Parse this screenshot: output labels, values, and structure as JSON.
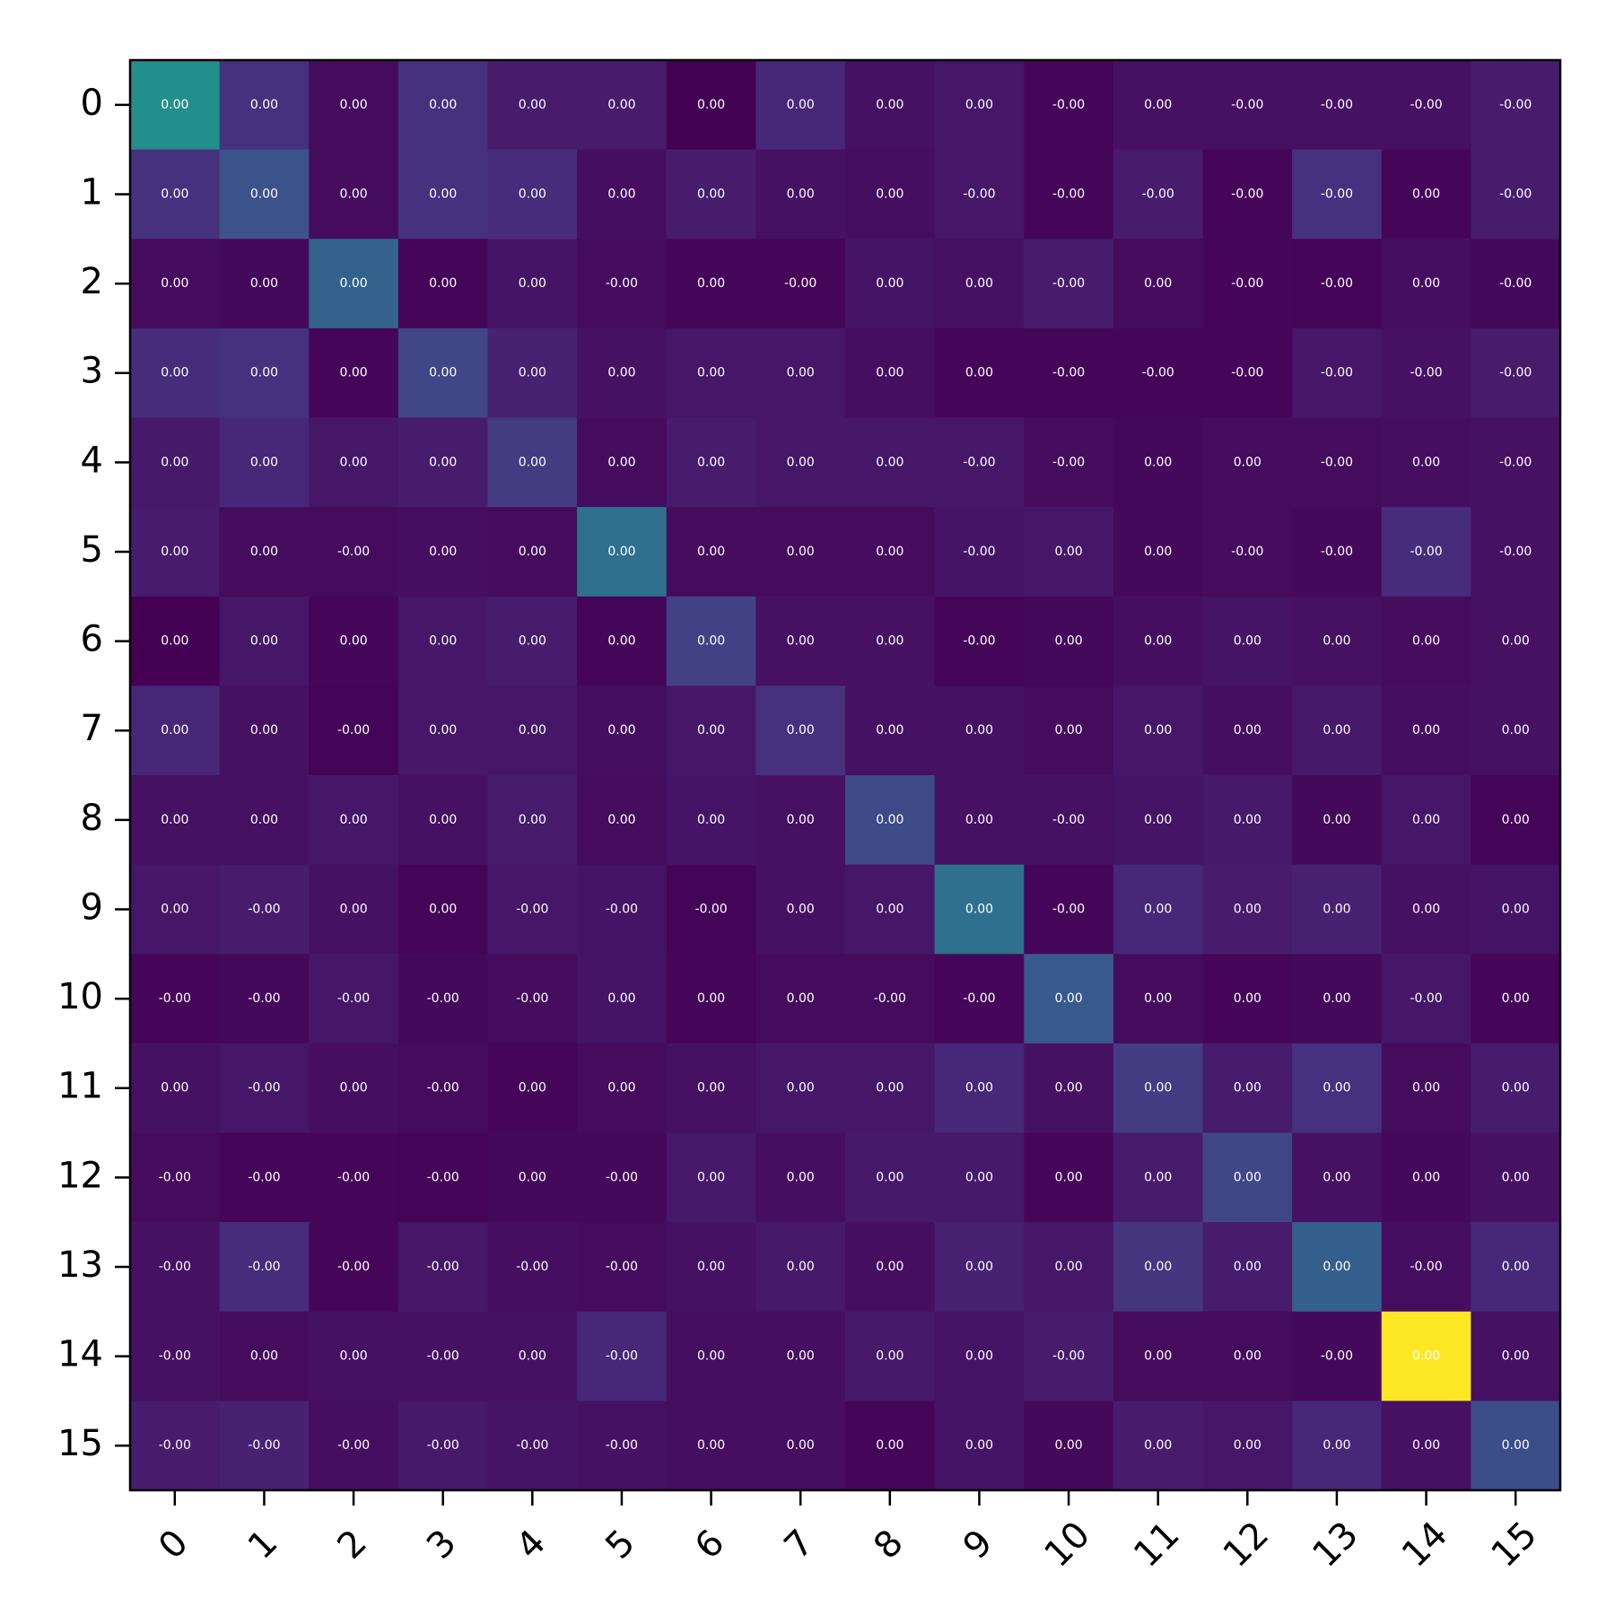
{
  "chart_data": {
    "type": "heatmap",
    "title": "",
    "xlabel": "",
    "ylabel": "",
    "colormap": "viridis",
    "legend": "none",
    "grid": false,
    "x_ticks": [
      "0",
      "1",
      "2",
      "3",
      "4",
      "5",
      "6",
      "7",
      "8",
      "9",
      "10",
      "11",
      "12",
      "13",
      "14",
      "15"
    ],
    "y_ticks": [
      "0",
      "1",
      "2",
      "3",
      "4",
      "5",
      "6",
      "7",
      "8",
      "9",
      "10",
      "11",
      "12",
      "13",
      "14",
      "15"
    ],
    "x_tick_rotation_deg": 45,
    "labels": [
      [
        "0.00",
        "0.00",
        "0.00",
        "0.00",
        "0.00",
        "0.00",
        "0.00",
        "0.00",
        "0.00",
        "0.00",
        "-0.00",
        "0.00",
        "-0.00",
        "-0.00",
        "-0.00",
        "-0.00"
      ],
      [
        "0.00",
        "0.00",
        "0.00",
        "0.00",
        "0.00",
        "0.00",
        "0.00",
        "0.00",
        "0.00",
        "-0.00",
        "-0.00",
        "-0.00",
        "-0.00",
        "-0.00",
        "0.00",
        "-0.00"
      ],
      [
        "0.00",
        "0.00",
        "0.00",
        "0.00",
        "0.00",
        "-0.00",
        "0.00",
        "-0.00",
        "0.00",
        "0.00",
        "-0.00",
        "0.00",
        "-0.00",
        "-0.00",
        "0.00",
        "-0.00"
      ],
      [
        "0.00",
        "0.00",
        "0.00",
        "0.00",
        "0.00",
        "0.00",
        "0.00",
        "0.00",
        "0.00",
        "0.00",
        "-0.00",
        "-0.00",
        "-0.00",
        "-0.00",
        "-0.00",
        "-0.00"
      ],
      [
        "0.00",
        "0.00",
        "0.00",
        "0.00",
        "0.00",
        "0.00",
        "0.00",
        "0.00",
        "0.00",
        "-0.00",
        "-0.00",
        "0.00",
        "0.00",
        "-0.00",
        "0.00",
        "-0.00"
      ],
      [
        "0.00",
        "0.00",
        "-0.00",
        "0.00",
        "0.00",
        "0.00",
        "0.00",
        "0.00",
        "0.00",
        "-0.00",
        "0.00",
        "0.00",
        "-0.00",
        "-0.00",
        "-0.00",
        "-0.00"
      ],
      [
        "0.00",
        "0.00",
        "0.00",
        "0.00",
        "0.00",
        "0.00",
        "0.00",
        "0.00",
        "0.00",
        "-0.00",
        "0.00",
        "0.00",
        "0.00",
        "0.00",
        "0.00",
        "0.00"
      ],
      [
        "0.00",
        "0.00",
        "-0.00",
        "0.00",
        "0.00",
        "0.00",
        "0.00",
        "0.00",
        "0.00",
        "0.00",
        "0.00",
        "0.00",
        "0.00",
        "0.00",
        "0.00",
        "0.00"
      ],
      [
        "0.00",
        "0.00",
        "0.00",
        "0.00",
        "0.00",
        "0.00",
        "0.00",
        "0.00",
        "0.00",
        "0.00",
        "-0.00",
        "0.00",
        "0.00",
        "0.00",
        "0.00",
        "0.00"
      ],
      [
        "0.00",
        "-0.00",
        "0.00",
        "0.00",
        "-0.00",
        "-0.00",
        "-0.00",
        "0.00",
        "0.00",
        "0.00",
        "-0.00",
        "0.00",
        "0.00",
        "0.00",
        "0.00",
        "0.00"
      ],
      [
        "-0.00",
        "-0.00",
        "-0.00",
        "-0.00",
        "-0.00",
        "0.00",
        "0.00",
        "0.00",
        "-0.00",
        "-0.00",
        "0.00",
        "0.00",
        "0.00",
        "0.00",
        "-0.00",
        "0.00"
      ],
      [
        "0.00",
        "-0.00",
        "0.00",
        "-0.00",
        "0.00",
        "0.00",
        "0.00",
        "0.00",
        "0.00",
        "0.00",
        "0.00",
        "0.00",
        "0.00",
        "0.00",
        "0.00",
        "0.00"
      ],
      [
        "-0.00",
        "-0.00",
        "-0.00",
        "-0.00",
        "0.00",
        "-0.00",
        "0.00",
        "0.00",
        "0.00",
        "0.00",
        "0.00",
        "0.00",
        "0.00",
        "0.00",
        "0.00",
        "0.00"
      ],
      [
        "-0.00",
        "-0.00",
        "-0.00",
        "-0.00",
        "-0.00",
        "-0.00",
        "0.00",
        "0.00",
        "0.00",
        "0.00",
        "0.00",
        "0.00",
        "0.00",
        "0.00",
        "-0.00",
        "0.00"
      ],
      [
        "-0.00",
        "0.00",
        "0.00",
        "-0.00",
        "0.00",
        "-0.00",
        "0.00",
        "0.00",
        "0.00",
        "0.00",
        "-0.00",
        "0.00",
        "0.00",
        "-0.00",
        "0.00",
        "0.00"
      ],
      [
        "-0.00",
        "-0.00",
        "-0.00",
        "-0.00",
        "-0.00",
        "-0.00",
        "0.00",
        "0.00",
        "0.00",
        "0.00",
        "0.00",
        "0.00",
        "0.00",
        "0.00",
        "0.00",
        "0.00"
      ]
    ],
    "intensity": [
      [
        0.62,
        0.18,
        0.04,
        0.18,
        0.1,
        0.1,
        0.0,
        0.14,
        0.06,
        0.08,
        0.02,
        0.06,
        0.06,
        0.06,
        0.06,
        0.1
      ],
      [
        0.18,
        0.32,
        0.04,
        0.18,
        0.16,
        0.05,
        0.1,
        0.06,
        0.05,
        0.08,
        0.02,
        0.1,
        0.02,
        0.18,
        0.02,
        0.1
      ],
      [
        0.04,
        0.03,
        0.4,
        0.01,
        0.07,
        0.04,
        0.02,
        0.02,
        0.07,
        0.06,
        0.1,
        0.04,
        0.02,
        0.01,
        0.05,
        0.03
      ],
      [
        0.16,
        0.18,
        0.02,
        0.26,
        0.12,
        0.06,
        0.08,
        0.08,
        0.05,
        0.02,
        0.02,
        0.02,
        0.02,
        0.08,
        0.06,
        0.1
      ],
      [
        0.09,
        0.14,
        0.08,
        0.1,
        0.22,
        0.04,
        0.1,
        0.08,
        0.08,
        0.08,
        0.04,
        0.03,
        0.04,
        0.04,
        0.05,
        0.06
      ],
      [
        0.1,
        0.04,
        0.04,
        0.05,
        0.04,
        0.46,
        0.04,
        0.04,
        0.04,
        0.07,
        0.08,
        0.03,
        0.04,
        0.03,
        0.16,
        0.06
      ],
      [
        0.0,
        0.08,
        0.02,
        0.08,
        0.1,
        0.02,
        0.24,
        0.06,
        0.06,
        0.01,
        0.03,
        0.05,
        0.07,
        0.06,
        0.04,
        0.06
      ],
      [
        0.14,
        0.06,
        0.01,
        0.08,
        0.08,
        0.05,
        0.08,
        0.18,
        0.06,
        0.06,
        0.04,
        0.08,
        0.05,
        0.09,
        0.05,
        0.06
      ],
      [
        0.06,
        0.06,
        0.08,
        0.06,
        0.1,
        0.04,
        0.07,
        0.06,
        0.28,
        0.06,
        0.06,
        0.07,
        0.09,
        0.03,
        0.08,
        0.01
      ],
      [
        0.08,
        0.1,
        0.06,
        0.01,
        0.08,
        0.07,
        0.01,
        0.06,
        0.08,
        0.46,
        0.02,
        0.14,
        0.1,
        0.12,
        0.06,
        0.07
      ],
      [
        0.02,
        0.03,
        0.08,
        0.03,
        0.04,
        0.07,
        0.02,
        0.04,
        0.04,
        0.02,
        0.35,
        0.04,
        0.02,
        0.03,
        0.08,
        0.02
      ],
      [
        0.06,
        0.08,
        0.05,
        0.04,
        0.02,
        0.04,
        0.06,
        0.08,
        0.08,
        0.14,
        0.06,
        0.22,
        0.1,
        0.18,
        0.04,
        0.1
      ],
      [
        0.04,
        0.02,
        0.02,
        0.01,
        0.03,
        0.03,
        0.09,
        0.05,
        0.09,
        0.09,
        0.02,
        0.1,
        0.26,
        0.06,
        0.03,
        0.06
      ],
      [
        0.06,
        0.16,
        0.02,
        0.08,
        0.05,
        0.04,
        0.06,
        0.09,
        0.05,
        0.12,
        0.08,
        0.2,
        0.1,
        0.38,
        0.05,
        0.14
      ],
      [
        0.06,
        0.04,
        0.06,
        0.06,
        0.06,
        0.14,
        0.05,
        0.05,
        0.09,
        0.07,
        0.1,
        0.04,
        0.04,
        0.03,
        1.0,
        0.06
      ],
      [
        0.1,
        0.12,
        0.05,
        0.09,
        0.07,
        0.06,
        0.05,
        0.05,
        0.02,
        0.07,
        0.03,
        0.1,
        0.08,
        0.14,
        0.06,
        0.3
      ]
    ]
  }
}
